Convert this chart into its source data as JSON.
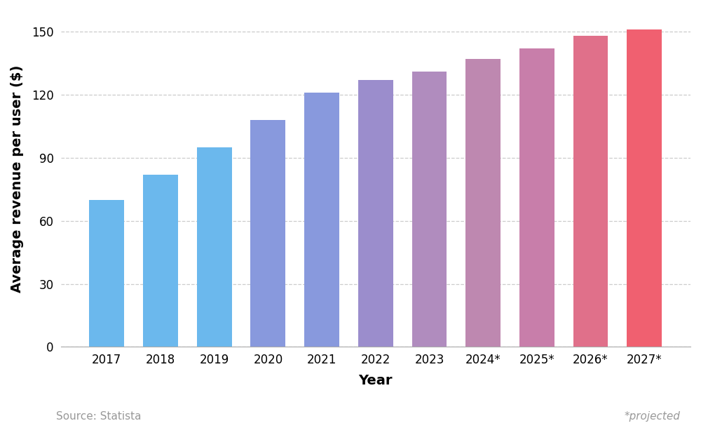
{
  "categories": [
    "2017",
    "2018",
    "2019",
    "2020",
    "2021",
    "2022",
    "2023",
    "2024*",
    "2025*",
    "2026*",
    "2027*"
  ],
  "values": [
    70,
    82,
    95,
    108,
    121,
    127,
    131,
    137,
    142,
    148,
    151
  ],
  "bar_colors": [
    "#6bb8ed",
    "#6bb8ed",
    "#6bb8ed",
    "#8899dd",
    "#8899dd",
    "#9b8dcc",
    "#b08cbe",
    "#be88b0",
    "#c87eaa",
    "#e0708a",
    "#f06070"
  ],
  "ylabel": "Average revenue per user ($)",
  "xlabel": "Year",
  "ylim": [
    0,
    160
  ],
  "yticks": [
    0,
    30,
    60,
    90,
    120,
    150
  ],
  "source_text": "Source: Statista",
  "projected_text": "*projected",
  "background_color": "#ffffff",
  "grid_color": "#cccccc",
  "tick_label_fontsize": 12,
  "axis_label_fontsize": 14,
  "source_fontsize": 11,
  "bar_width": 0.65
}
